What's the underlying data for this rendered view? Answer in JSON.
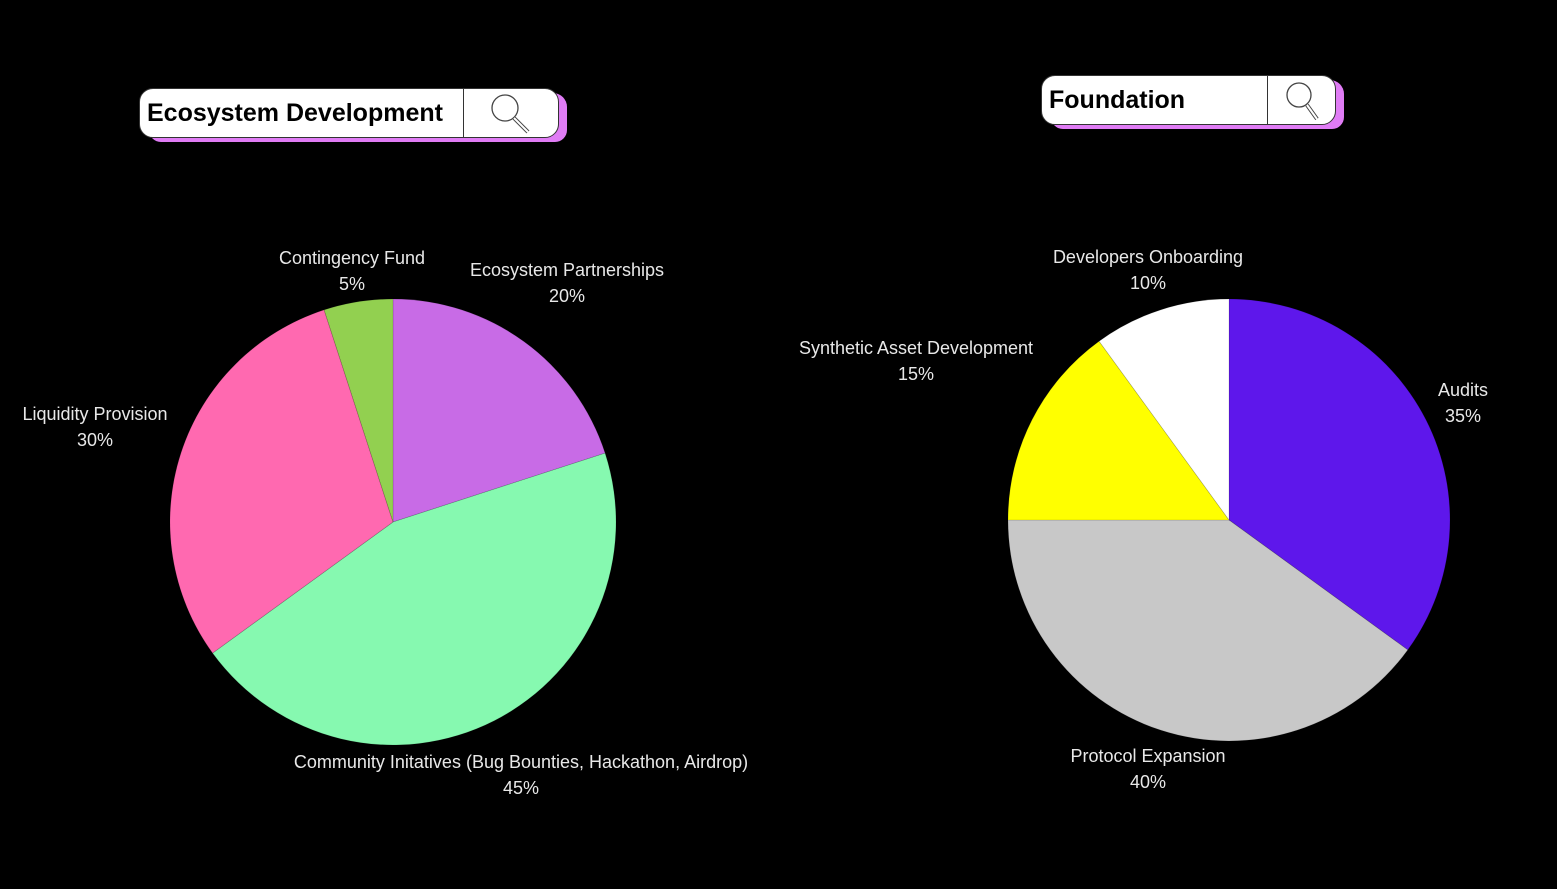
{
  "chart_data": [
    {
      "type": "pie",
      "title": "Ecosystem Development",
      "start": "top-clockwise",
      "slices": [
        {
          "label": "Ecosystem Partnerships",
          "value": 20,
          "display": "20%",
          "color": "#c86be6"
        },
        {
          "label": "Community Initatives (Bug Bounties, Hackathon, Airdrop)",
          "value": 45,
          "display": "45%",
          "color": "#86f9b0"
        },
        {
          "label": "Liquidity Provision",
          "value": 30,
          "display": "30%",
          "color": "#ff69b0"
        },
        {
          "label": "Contingency Fund",
          "value": 5,
          "display": "5%",
          "color": "#92d050"
        }
      ]
    },
    {
      "type": "pie",
      "title": "Foundation",
      "start": "top-clockwise",
      "slices": [
        {
          "label": "Audits",
          "value": 35,
          "display": "35%",
          "color": "#5e17eb"
        },
        {
          "label": "Protocol Expansion",
          "value": 40,
          "display": "40%",
          "color": "#c8c8c8"
        },
        {
          "label": "Synthetic Asset Development",
          "value": 15,
          "display": "15%",
          "color": "#ffff00"
        },
        {
          "label": "Developers Onboarding",
          "value": 10,
          "display": "10%",
          "color": "#ffffff"
        }
      ]
    }
  ],
  "colors": {
    "background": "#000000",
    "search_shadow": "#e07cf5"
  },
  "icons": {
    "search": "magnifier-icon"
  }
}
